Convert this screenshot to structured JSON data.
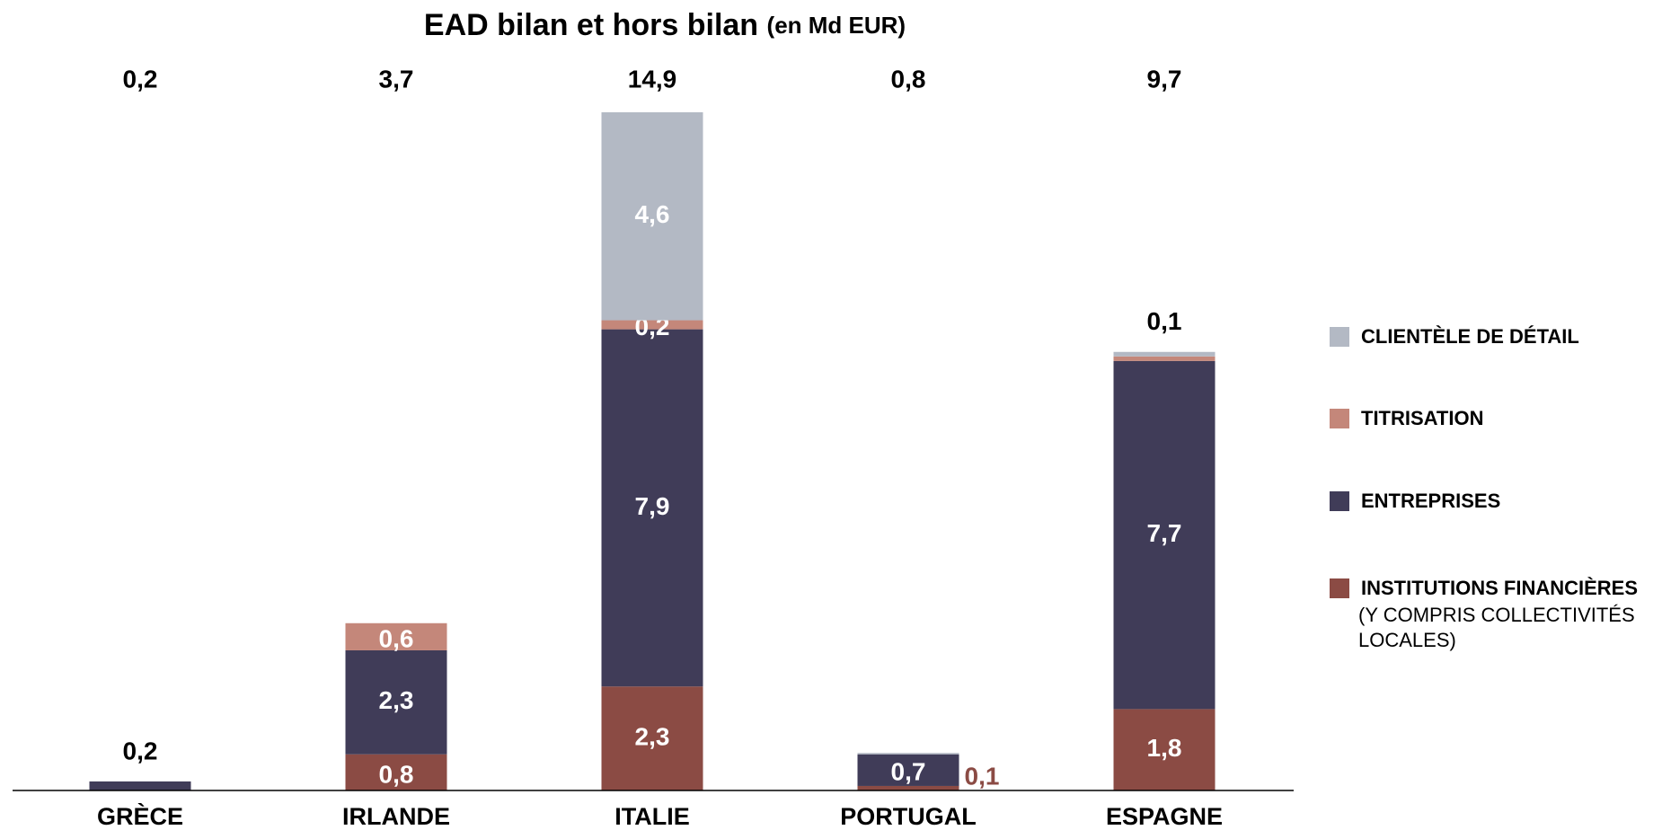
{
  "chart_data": {
    "type": "stacked_bar",
    "title": "EAD bilan et hors bilan",
    "unit": "(en Md EUR)",
    "categories": [
      "GRÈCE",
      "IRLANDE",
      "ITALIE",
      "PORTUGAL",
      "ESPAGNE"
    ],
    "totals": [
      0.2,
      3.7,
      14.9,
      0.8,
      9.7
    ],
    "total_labels": [
      "0,2",
      "3,7",
      "14,9",
      "0,8",
      "9,7"
    ],
    "ylim": [
      0,
      15
    ],
    "series": [
      {
        "name": "INSTITUTIONS FINANCIÈRES",
        "detail": [
          "(Y COMPRIS COLLECTIVITÉS",
          "LOCALES)"
        ],
        "color": "#8b4b44",
        "values": [
          null,
          0.8,
          2.3,
          0.1,
          1.8
        ],
        "value_labels": [
          null,
          "0,8",
          "2,3",
          "0,1",
          "1,8"
        ]
      },
      {
        "name": "ENTREPRISES",
        "color": "#403c58",
        "values": [
          0.2,
          2.3,
          7.9,
          0.7,
          7.7
        ],
        "value_labels": [
          "0,2",
          "2,3",
          "7,9",
          "0,7",
          "7,7"
        ]
      },
      {
        "name": "TITRISATION",
        "color": "#c4877a",
        "values": [
          null,
          0.6,
          0.2,
          null,
          0.1
        ],
        "value_labels": [
          null,
          "0,6",
          "0,2",
          null,
          null
        ]
      },
      {
        "name": "CLIENTÈLE DE DÉTAIL",
        "color": "#b3b9c4",
        "values": [
          null,
          null,
          4.6,
          0.03,
          0.1
        ],
        "value_labels": [
          null,
          null,
          "4,6",
          null,
          "0,1"
        ]
      }
    ]
  }
}
